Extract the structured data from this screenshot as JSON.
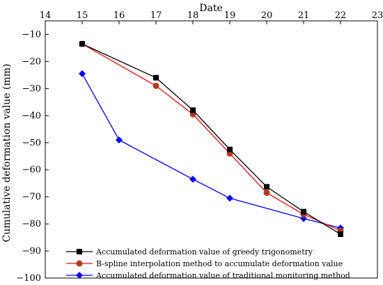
{
  "chart_data": {
    "type": "line",
    "xlabel": "Date",
    "ylabel": "Cumulative deformation value (mm)",
    "xlim": [
      14,
      23
    ],
    "ylim": [
      -100,
      -5
    ],
    "x_ticks": [
      14,
      15,
      16,
      17,
      18,
      19,
      20,
      21,
      22,
      23
    ],
    "y_ticks": [
      -10,
      -20,
      -30,
      -40,
      -50,
      -60,
      -70,
      -80,
      -90,
      -100
    ],
    "x_axis_position": "top",
    "grid": false,
    "legend_position": "bottom-left",
    "series": [
      {
        "name": "Accumulated deformation value of greedy trigonometry",
        "color": "#000000",
        "line_color": "#000000",
        "marker": "square",
        "x": [
          15,
          17,
          18,
          19,
          20,
          21,
          22
        ],
        "y": [
          -13.5,
          -26,
          -38,
          -52.5,
          -66.3,
          -75.5,
          -83.8
        ]
      },
      {
        "name": "B-spline interpolation method to accumulate deformation value",
        "color": "#b03a1e",
        "line_color": "#e01010",
        "marker": "circle",
        "x": [
          15,
          17,
          18,
          19,
          20,
          21,
          22
        ],
        "y": [
          -13.5,
          -29,
          -39.5,
          -54,
          -68.5,
          -76.5,
          -82.5
        ]
      },
      {
        "name": "Accumulated deformation value of traditional monitoring method",
        "color": "#0000ff",
        "line_color": "#0000ff",
        "marker": "diamond",
        "x": [
          15,
          16,
          18,
          19,
          21,
          22
        ],
        "y": [
          -24.5,
          -49,
          -63.5,
          -70.5,
          -78,
          -81.5
        ]
      }
    ]
  }
}
